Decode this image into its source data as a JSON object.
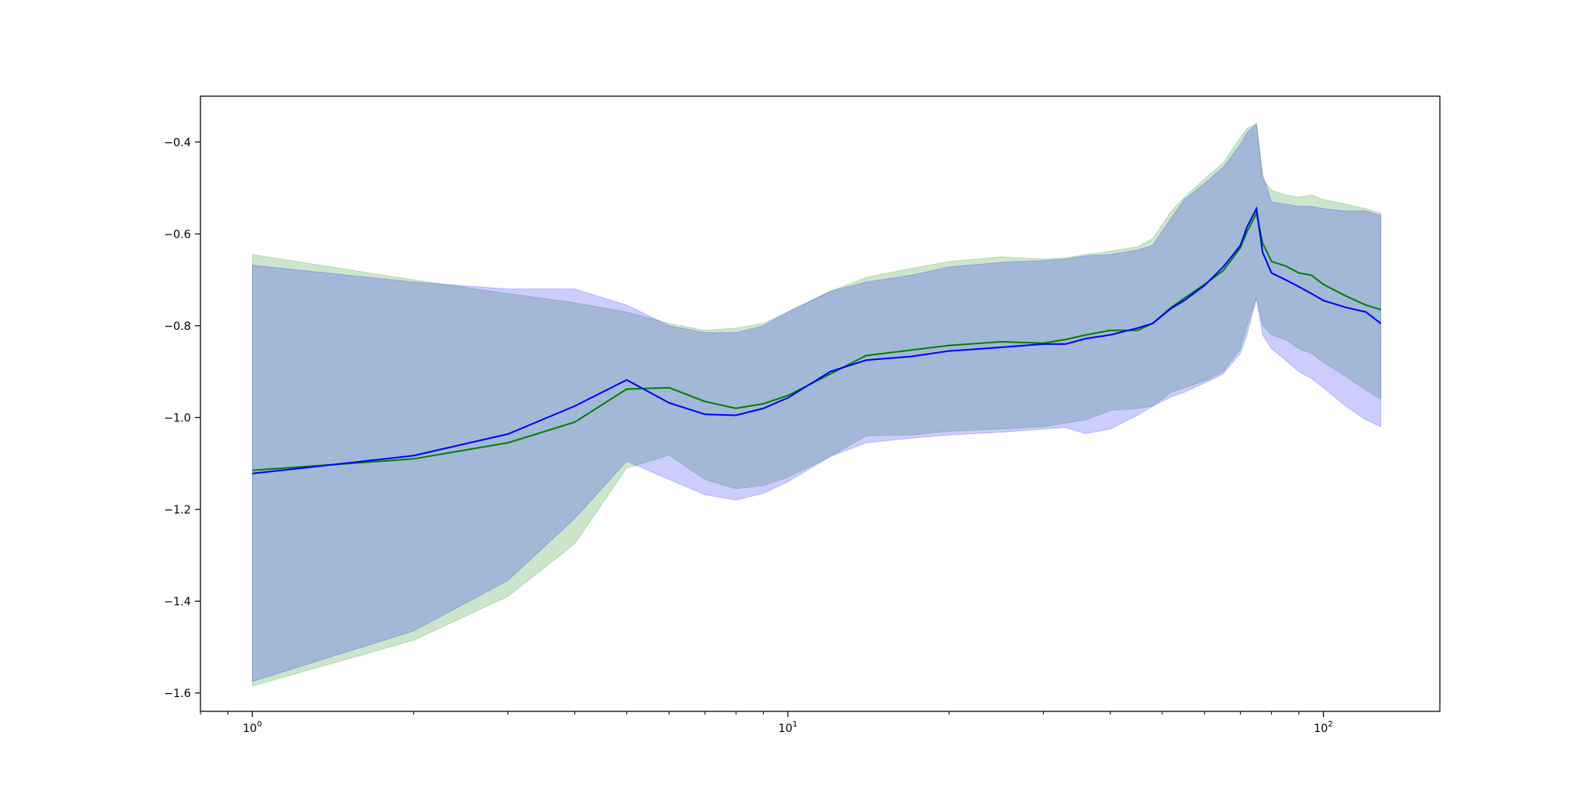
{
  "chart_data": {
    "type": "line",
    "title": "",
    "xlabel": "",
    "ylabel": "",
    "xscale": "log",
    "xlim": [
      0.8,
      165
    ],
    "ylim": [
      -1.64,
      -0.3
    ],
    "grid": false,
    "legend": null,
    "xticks": [
      {
        "value": 1,
        "base": "10",
        "exp": "0"
      },
      {
        "value": 10,
        "base": "10",
        "exp": "1"
      },
      {
        "value": 100,
        "base": "10",
        "exp": "2"
      }
    ],
    "yticks": [
      {
        "value": -0.4,
        "label": "−0.4"
      },
      {
        "value": -0.6,
        "label": "−0.6"
      },
      {
        "value": -0.8,
        "label": "−0.8"
      },
      {
        "value": -1.0,
        "label": "−1.0"
      },
      {
        "value": -1.2,
        "label": "−1.2"
      },
      {
        "value": -1.4,
        "label": "−1.4"
      },
      {
        "value": -1.6,
        "label": "−1.6"
      }
    ],
    "series": [
      {
        "color": "#008000",
        "band_color": "#008000",
        "band_opacity": 0.2,
        "x": [
          1,
          2,
          3,
          4,
          5,
          6,
          7,
          8,
          9,
          10,
          12,
          14,
          17,
          20,
          25,
          30,
          33,
          36,
          40,
          45,
          48,
          52,
          55,
          60,
          65,
          70,
          72,
          75,
          77,
          80,
          85,
          90,
          95,
          100,
          110,
          120,
          128
        ],
        "y": [
          -1.115,
          -1.09,
          -1.055,
          -1.01,
          -0.938,
          -0.935,
          -0.965,
          -0.98,
          -0.97,
          -0.952,
          -0.905,
          -0.865,
          -0.853,
          -0.843,
          -0.835,
          -0.838,
          -0.83,
          -0.82,
          -0.81,
          -0.81,
          -0.795,
          -0.76,
          -0.74,
          -0.71,
          -0.68,
          -0.63,
          -0.595,
          -0.555,
          -0.62,
          -0.66,
          -0.67,
          -0.685,
          -0.69,
          -0.71,
          -0.735,
          -0.755,
          -0.765
        ],
        "upper": [
          -0.645,
          -0.7,
          -0.73,
          -0.75,
          -0.77,
          -0.795,
          -0.81,
          -0.805,
          -0.795,
          -0.77,
          -0.725,
          -0.695,
          -0.675,
          -0.66,
          -0.65,
          -0.655,
          -0.652,
          -0.645,
          -0.638,
          -0.628,
          -0.61,
          -0.55,
          -0.52,
          -0.48,
          -0.445,
          -0.39,
          -0.37,
          -0.36,
          -0.48,
          -0.505,
          -0.515,
          -0.52,
          -0.515,
          -0.525,
          -0.535,
          -0.545,
          -0.555
        ],
        "lower": [
          -1.585,
          -1.485,
          -1.39,
          -1.275,
          -1.11,
          -1.082,
          -1.135,
          -1.155,
          -1.148,
          -1.13,
          -1.085,
          -1.04,
          -1.038,
          -1.03,
          -1.025,
          -1.02,
          -1.012,
          -1.005,
          -0.985,
          -0.98,
          -0.975,
          -0.945,
          -0.935,
          -0.92,
          -0.9,
          -0.85,
          -0.8,
          -0.74,
          -0.8,
          -0.82,
          -0.83,
          -0.85,
          -0.86,
          -0.88,
          -0.91,
          -0.94,
          -0.96
        ]
      },
      {
        "color": "#0000ff",
        "band_color": "#0000ff",
        "band_opacity": 0.2,
        "x": [
          1,
          2,
          3,
          4,
          5,
          6,
          7,
          8,
          9,
          10,
          12,
          14,
          17,
          20,
          25,
          30,
          33,
          36,
          40,
          45,
          48,
          52,
          55,
          60,
          65,
          70,
          72,
          75,
          77,
          80,
          85,
          90,
          95,
          100,
          110,
          120,
          128
        ],
        "y": [
          -1.122,
          -1.083,
          -1.036,
          -0.975,
          -0.918,
          -0.968,
          -0.993,
          -0.995,
          -0.98,
          -0.957,
          -0.9,
          -0.875,
          -0.867,
          -0.855,
          -0.847,
          -0.84,
          -0.84,
          -0.828,
          -0.82,
          -0.805,
          -0.795,
          -0.762,
          -0.745,
          -0.712,
          -0.672,
          -0.625,
          -0.585,
          -0.545,
          -0.64,
          -0.685,
          -0.7,
          -0.715,
          -0.73,
          -0.745,
          -0.76,
          -0.77,
          -0.795
        ],
        "upper": [
          -0.668,
          -0.705,
          -0.72,
          -0.72,
          -0.755,
          -0.8,
          -0.815,
          -0.815,
          -0.8,
          -0.77,
          -0.725,
          -0.705,
          -0.69,
          -0.672,
          -0.662,
          -0.658,
          -0.655,
          -0.648,
          -0.645,
          -0.635,
          -0.625,
          -0.565,
          -0.525,
          -0.49,
          -0.455,
          -0.405,
          -0.38,
          -0.36,
          -0.47,
          -0.53,
          -0.535,
          -0.54,
          -0.54,
          -0.545,
          -0.55,
          -0.55,
          -0.56
        ],
        "lower": [
          -1.575,
          -1.465,
          -1.355,
          -1.22,
          -1.095,
          -1.135,
          -1.168,
          -1.18,
          -1.165,
          -1.14,
          -1.085,
          -1.055,
          -1.045,
          -1.038,
          -1.032,
          -1.025,
          -1.022,
          -1.035,
          -1.025,
          -0.995,
          -0.975,
          -0.955,
          -0.945,
          -0.925,
          -0.905,
          -0.86,
          -0.82,
          -0.74,
          -0.82,
          -0.85,
          -0.875,
          -0.9,
          -0.915,
          -0.935,
          -0.975,
          -1.005,
          -1.02
        ]
      }
    ]
  }
}
